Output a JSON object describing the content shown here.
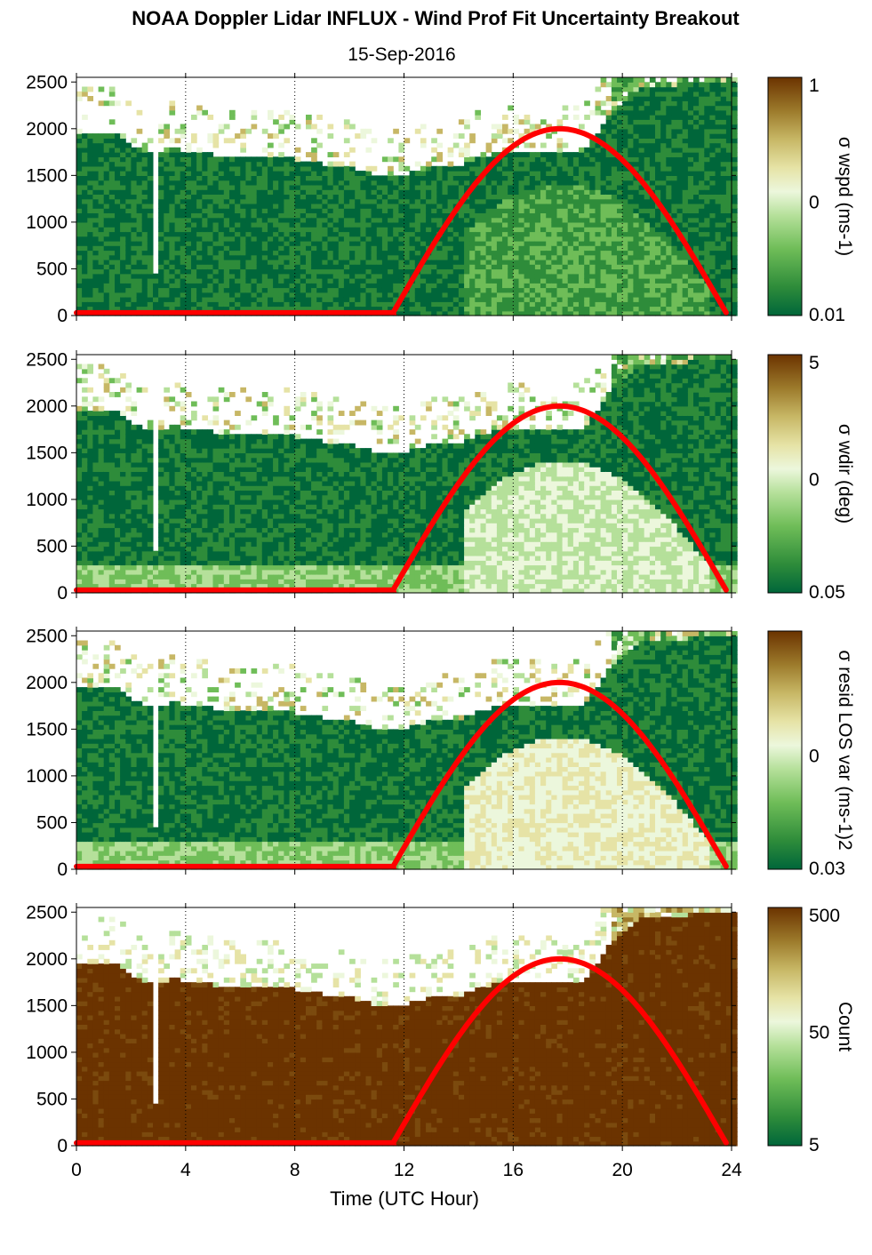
{
  "title": "NOAA Doppler Lidar INFLUX - Wind Prof Fit Uncertainty Breakout",
  "subtitle": "15-Sep-2016",
  "xlabel": "Time (UTC Hour)",
  "x_ticks": [
    "0",
    "4",
    "8",
    "12",
    "16",
    "20",
    "24"
  ],
  "y_ticks": [
    "0",
    "500",
    "1000",
    "1500",
    "2000",
    "2500"
  ],
  "colors": {
    "colormap": [
      "#00663a",
      "#2e8c3a",
      "#6fbd58",
      "#b5e09a",
      "#ecf7dc",
      "#e6e3a6",
      "#c7b765",
      "#9c7a2b",
      "#7b4a0e",
      "#6b3300"
    ],
    "sun_curve": "#ff0000",
    "grid": "#000000"
  },
  "chart_data": [
    {
      "type": "heatmap",
      "panel": "wspd uncertainty",
      "colorbar_label": "σ wspd (ms-1)",
      "colorbar_ticks": [
        "1",
        "0",
        "0.01"
      ],
      "x_range": [
        0,
        24
      ],
      "y_range": [
        0,
        2550
      ],
      "vlines": [
        4,
        8,
        12,
        16,
        20,
        24
      ],
      "sun_elevation_curve": {
        "x": [
          0,
          11.6,
          17.6,
          23.8
        ],
        "y": [
          30,
          30,
          2000,
          30
        ]
      }
    },
    {
      "type": "heatmap",
      "panel": "wdir uncertainty",
      "colorbar_label": "σ wdir (deg)",
      "colorbar_ticks": [
        "5",
        "0",
        "0.05"
      ],
      "x_range": [
        0,
        24
      ],
      "y_range": [
        0,
        2550
      ],
      "vlines": [
        4,
        8,
        12,
        16,
        20,
        24
      ],
      "sun_elevation_curve": {
        "x": [
          0,
          11.6,
          17.6,
          23.8
        ],
        "y": [
          30,
          30,
          2000,
          30
        ]
      }
    },
    {
      "type": "heatmap",
      "panel": "residual LOS variance",
      "colorbar_label": "σ resid LOS var (ms-1)2",
      "colorbar_ticks": [
        "",
        "0",
        "0.03"
      ],
      "x_range": [
        0,
        24
      ],
      "y_range": [
        0,
        2550
      ],
      "vlines": [
        4,
        8,
        12,
        16,
        20,
        24
      ],
      "sun_elevation_curve": {
        "x": [
          0,
          11.6,
          17.6,
          23.8
        ],
        "y": [
          30,
          30,
          2000,
          30
        ]
      }
    },
    {
      "type": "heatmap",
      "panel": "count",
      "colorbar_label": "Count",
      "colorbar_ticks": [
        "500",
        "50",
        "5"
      ],
      "x_range": [
        0,
        24
      ],
      "y_range": [
        0,
        2550
      ],
      "vlines": [
        4,
        8,
        12,
        16,
        20,
        24
      ],
      "sun_elevation_curve": {
        "x": [
          0,
          11.6,
          17.6,
          23.8
        ],
        "y": [
          30,
          30,
          2000,
          30
        ]
      }
    }
  ]
}
